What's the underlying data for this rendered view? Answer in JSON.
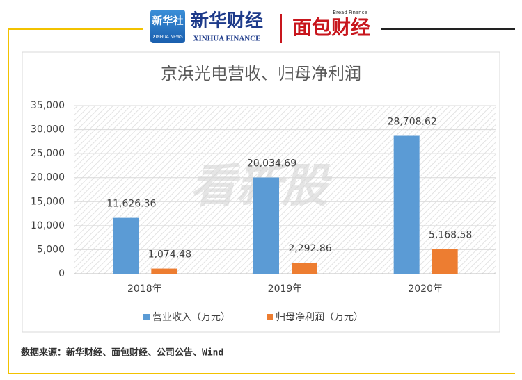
{
  "header": {
    "logo_main": "新华社",
    "logo_sub": "XINHUA NEWS",
    "brand": "新华财经",
    "brand_en": "XINHUA FINANCE",
    "partner": "面包财经",
    "partner_en": "Bread Finance"
  },
  "chart_data": {
    "type": "bar",
    "title": "京浜光电营收、归母净利润",
    "categories": [
      "2018年",
      "2019年",
      "2020年"
    ],
    "series": [
      {
        "name": "营业收入（万元）",
        "color": "#5b9bd5",
        "values": [
          11626.36,
          20034.69,
          28708.62
        ],
        "value_labels": [
          "11,626.36",
          "20,034.69",
          "28,708.62"
        ]
      },
      {
        "name": "归母净利润（万元）",
        "color": "#ed7d31",
        "values": [
          1074.48,
          2292.86,
          5168.58
        ],
        "value_labels": [
          "1,074.48",
          "2,292.86",
          "5,168.58"
        ]
      }
    ],
    "ylim": [
      0,
      35000
    ],
    "yticks": [
      0,
      {
        "value": 5000,
        "label": "5,000"
      },
      {
        "value": 10000,
        "label": "10,000"
      },
      {
        "value": 15000,
        "label": "15,000"
      },
      {
        "value": 20000,
        "label": "20,000"
      },
      {
        "value": 25000,
        "label": "25,000"
      },
      {
        "value": 30000,
        "label": "30,000"
      },
      {
        "value": 35000,
        "label": "35,000"
      }
    ],
    "grid": true,
    "legend": "bottom",
    "watermark": "看新股"
  },
  "footer": {
    "source": "数据来源：新华财经、面包财经、公司公告、Wind"
  }
}
